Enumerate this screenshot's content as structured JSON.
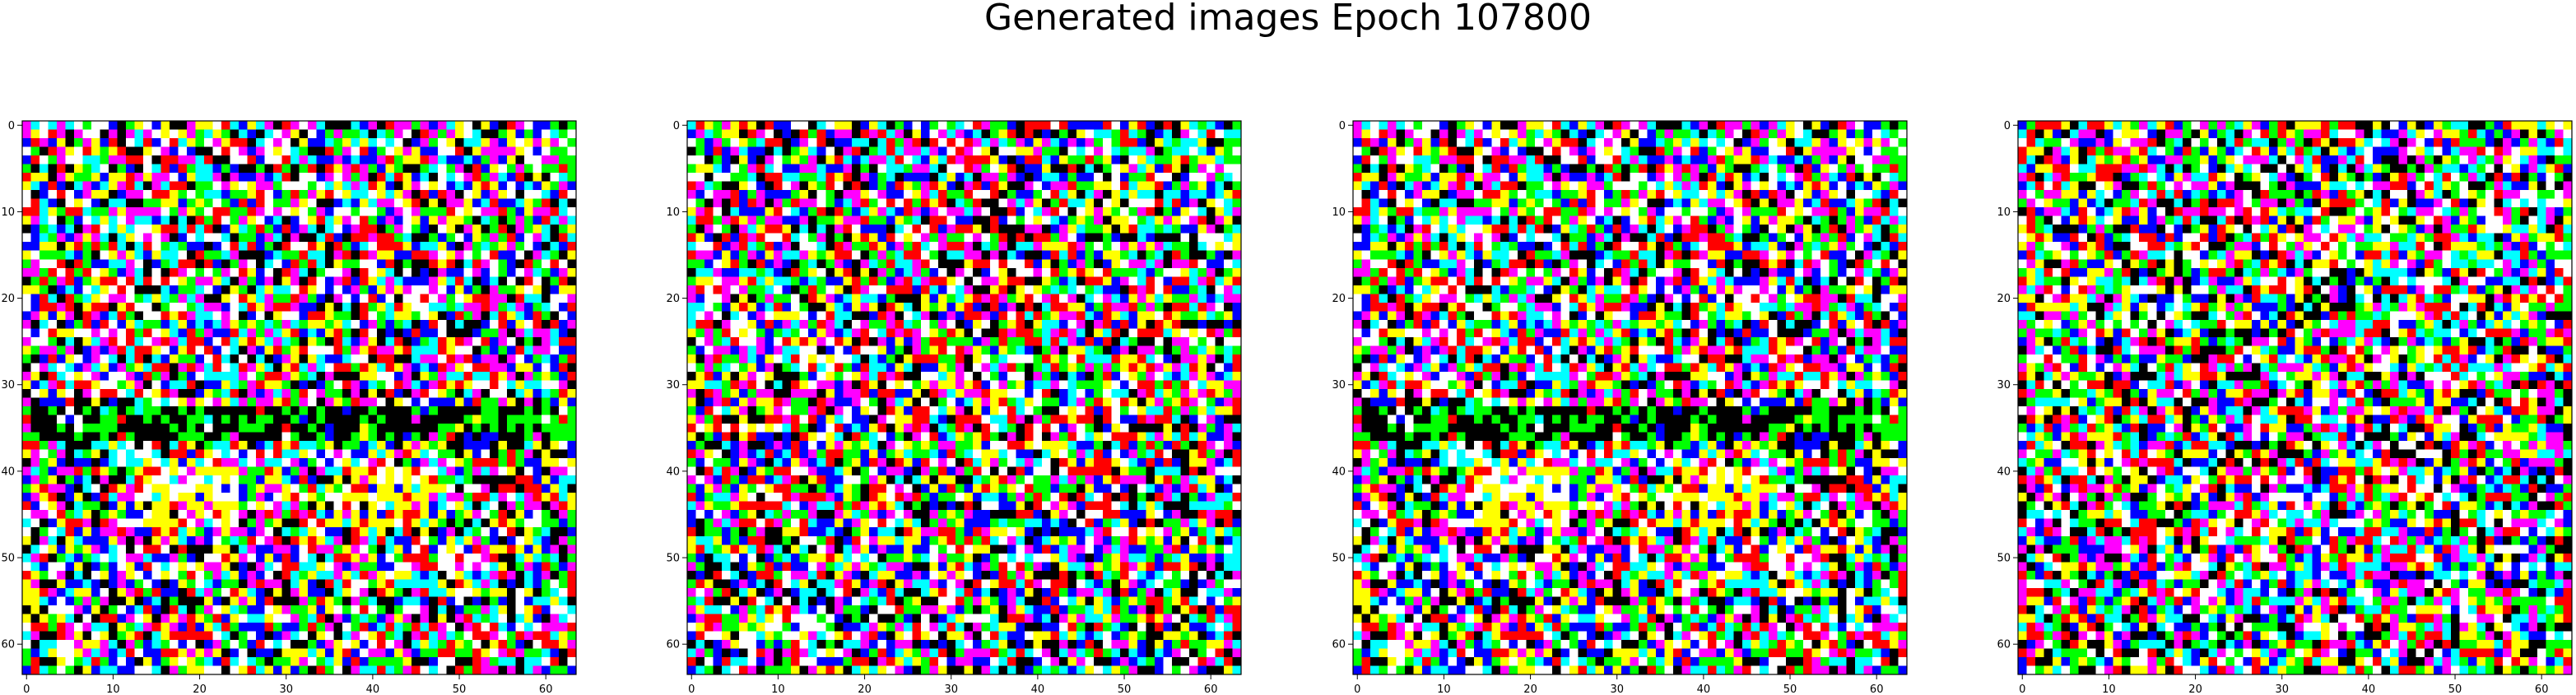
{
  "figure": {
    "title": "Generated images Epoch 107800"
  },
  "chart_data": [
    {
      "type": "heatmap",
      "title": "",
      "xlabel": "",
      "ylabel": "",
      "xlim": [
        -0.5,
        63.5
      ],
      "ylim": [
        63.5,
        -0.5
      ],
      "grid_size": 64,
      "x_ticks": [
        0,
        10,
        20,
        30,
        40,
        50,
        60
      ],
      "y_ticks": [
        0,
        10,
        20,
        30,
        40,
        50,
        60
      ],
      "palette": [
        "#ff0000",
        "#00ff00",
        "#0000ff",
        "#ffff00",
        "#ff00ff",
        "#00ffff",
        "#ffffff",
        "#000000"
      ],
      "pattern": "dark-band-rows-33-36-with-yellow-patch-40-46"
    },
    {
      "type": "heatmap",
      "title": "",
      "xlabel": "",
      "ylabel": "",
      "xlim": [
        -0.5,
        63.5
      ],
      "ylim": [
        63.5,
        -0.5
      ],
      "grid_size": 64,
      "x_ticks": [
        0,
        10,
        20,
        30,
        40,
        50,
        60
      ],
      "y_ticks": [
        0,
        10,
        20,
        30,
        40,
        50,
        60
      ],
      "palette": [
        "#ff0000",
        "#00ff00",
        "#0000ff",
        "#ffff00",
        "#ff00ff",
        "#00ffff",
        "#ffffff",
        "#000000"
      ],
      "pattern": "uniform-noise"
    },
    {
      "type": "heatmap",
      "title": "",
      "xlabel": "",
      "ylabel": "",
      "xlim": [
        -0.5,
        63.5
      ],
      "ylim": [
        63.5,
        -0.5
      ],
      "grid_size": 64,
      "x_ticks": [
        0,
        10,
        20,
        30,
        40,
        50,
        60
      ],
      "y_ticks": [
        0,
        10,
        20,
        30,
        40,
        50,
        60
      ],
      "palette": [
        "#ff0000",
        "#00ff00",
        "#0000ff",
        "#ffff00",
        "#ff00ff",
        "#00ffff",
        "#ffffff",
        "#000000"
      ],
      "pattern": "dark-band-rows-33-36-with-yellow-patch-40-46"
    },
    {
      "type": "heatmap",
      "title": "",
      "xlabel": "",
      "ylabel": "",
      "xlim": [
        -0.5,
        63.5
      ],
      "ylim": [
        63.5,
        -0.5
      ],
      "grid_size": 64,
      "x_ticks": [
        0,
        10,
        20,
        30,
        40,
        50,
        60
      ],
      "y_ticks": [
        0,
        10,
        20,
        30,
        40,
        50,
        60
      ],
      "palette": [
        "#ff0000",
        "#00ff00",
        "#0000ff",
        "#ffff00",
        "#ff00ff",
        "#00ffff",
        "#ffffff",
        "#000000"
      ],
      "pattern": "uniform-noise"
    }
  ]
}
